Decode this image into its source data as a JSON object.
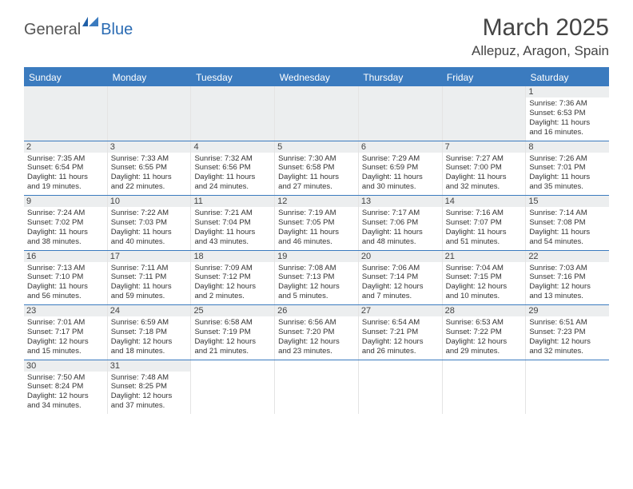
{
  "logo": {
    "text1": "General",
    "text2": "Blue"
  },
  "title": "March 2025",
  "location": "Allepuz, Aragon, Spain",
  "colors": {
    "header_bg": "#3b7bbf",
    "header_text": "#ffffff",
    "row_divider": "#3b7bbf",
    "daynum_bg": "#eceeef",
    "body_text": "#333333",
    "logo_gray": "#555555",
    "logo_blue": "#2a6bb3"
  },
  "dow": [
    "Sunday",
    "Monday",
    "Tuesday",
    "Wednesday",
    "Thursday",
    "Friday",
    "Saturday"
  ],
  "weeks": [
    [
      null,
      null,
      null,
      null,
      null,
      null,
      {
        "n": "1",
        "sr": "7:36 AM",
        "ss": "6:53 PM",
        "dh": "11",
        "dm": "16"
      }
    ],
    [
      {
        "n": "2",
        "sr": "7:35 AM",
        "ss": "6:54 PM",
        "dh": "11",
        "dm": "19"
      },
      {
        "n": "3",
        "sr": "7:33 AM",
        "ss": "6:55 PM",
        "dh": "11",
        "dm": "22"
      },
      {
        "n": "4",
        "sr": "7:32 AM",
        "ss": "6:56 PM",
        "dh": "11",
        "dm": "24"
      },
      {
        "n": "5",
        "sr": "7:30 AM",
        "ss": "6:58 PM",
        "dh": "11",
        "dm": "27"
      },
      {
        "n": "6",
        "sr": "7:29 AM",
        "ss": "6:59 PM",
        "dh": "11",
        "dm": "30"
      },
      {
        "n": "7",
        "sr": "7:27 AM",
        "ss": "7:00 PM",
        "dh": "11",
        "dm": "32"
      },
      {
        "n": "8",
        "sr": "7:26 AM",
        "ss": "7:01 PM",
        "dh": "11",
        "dm": "35"
      }
    ],
    [
      {
        "n": "9",
        "sr": "7:24 AM",
        "ss": "7:02 PM",
        "dh": "11",
        "dm": "38"
      },
      {
        "n": "10",
        "sr": "7:22 AM",
        "ss": "7:03 PM",
        "dh": "11",
        "dm": "40"
      },
      {
        "n": "11",
        "sr": "7:21 AM",
        "ss": "7:04 PM",
        "dh": "11",
        "dm": "43"
      },
      {
        "n": "12",
        "sr": "7:19 AM",
        "ss": "7:05 PM",
        "dh": "11",
        "dm": "46"
      },
      {
        "n": "13",
        "sr": "7:17 AM",
        "ss": "7:06 PM",
        "dh": "11",
        "dm": "48"
      },
      {
        "n": "14",
        "sr": "7:16 AM",
        "ss": "7:07 PM",
        "dh": "11",
        "dm": "51"
      },
      {
        "n": "15",
        "sr": "7:14 AM",
        "ss": "7:08 PM",
        "dh": "11",
        "dm": "54"
      }
    ],
    [
      {
        "n": "16",
        "sr": "7:13 AM",
        "ss": "7:10 PM",
        "dh": "11",
        "dm": "56"
      },
      {
        "n": "17",
        "sr": "7:11 AM",
        "ss": "7:11 PM",
        "dh": "11",
        "dm": "59"
      },
      {
        "n": "18",
        "sr": "7:09 AM",
        "ss": "7:12 PM",
        "dh": "12",
        "dm": "2"
      },
      {
        "n": "19",
        "sr": "7:08 AM",
        "ss": "7:13 PM",
        "dh": "12",
        "dm": "5"
      },
      {
        "n": "20",
        "sr": "7:06 AM",
        "ss": "7:14 PM",
        "dh": "12",
        "dm": "7"
      },
      {
        "n": "21",
        "sr": "7:04 AM",
        "ss": "7:15 PM",
        "dh": "12",
        "dm": "10"
      },
      {
        "n": "22",
        "sr": "7:03 AM",
        "ss": "7:16 PM",
        "dh": "12",
        "dm": "13"
      }
    ],
    [
      {
        "n": "23",
        "sr": "7:01 AM",
        "ss": "7:17 PM",
        "dh": "12",
        "dm": "15"
      },
      {
        "n": "24",
        "sr": "6:59 AM",
        "ss": "7:18 PM",
        "dh": "12",
        "dm": "18"
      },
      {
        "n": "25",
        "sr": "6:58 AM",
        "ss": "7:19 PM",
        "dh": "12",
        "dm": "21"
      },
      {
        "n": "26",
        "sr": "6:56 AM",
        "ss": "7:20 PM",
        "dh": "12",
        "dm": "23"
      },
      {
        "n": "27",
        "sr": "6:54 AM",
        "ss": "7:21 PM",
        "dh": "12",
        "dm": "26"
      },
      {
        "n": "28",
        "sr": "6:53 AM",
        "ss": "7:22 PM",
        "dh": "12",
        "dm": "29"
      },
      {
        "n": "29",
        "sr": "6:51 AM",
        "ss": "7:23 PM",
        "dh": "12",
        "dm": "32"
      }
    ],
    [
      {
        "n": "30",
        "sr": "7:50 AM",
        "ss": "8:24 PM",
        "dh": "12",
        "dm": "34"
      },
      {
        "n": "31",
        "sr": "7:48 AM",
        "ss": "8:25 PM",
        "dh": "12",
        "dm": "37"
      },
      null,
      null,
      null,
      null,
      null
    ]
  ],
  "labels": {
    "sunrise": "Sunrise:",
    "sunset": "Sunset:",
    "daylight": "Daylight:",
    "hours": "hours",
    "and": "and",
    "minutes": "minutes."
  }
}
